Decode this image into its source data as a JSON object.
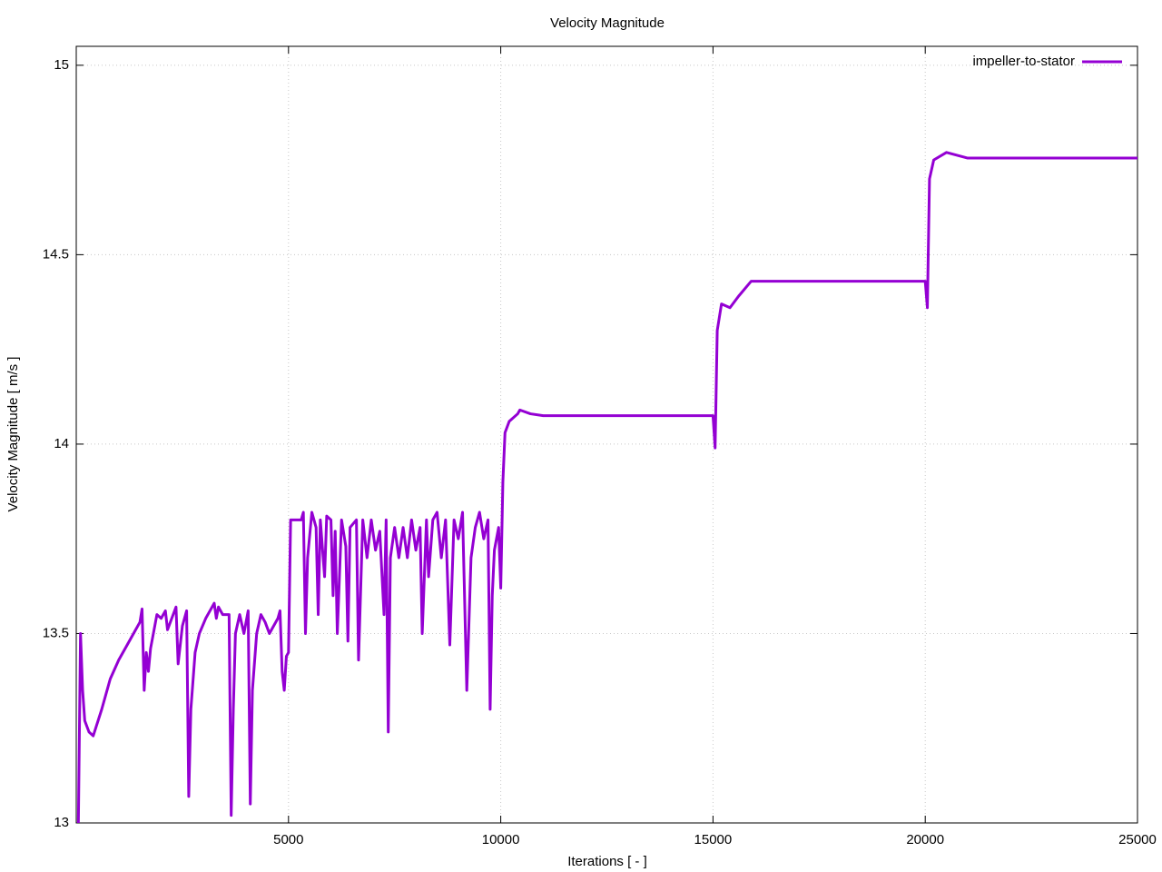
{
  "chart_data": {
    "type": "line",
    "title": "Velocity Magnitude",
    "xlabel": "Iterations [ - ]",
    "ylabel": "Velocity Magnitude [ m/s ]",
    "x": [
      50,
      100,
      150,
      200,
      300,
      400,
      600,
      800,
      1000,
      1200,
      1400,
      1500,
      1550,
      1600,
      1650,
      1700,
      1750,
      1850,
      1900,
      2000,
      2100,
      2150,
      2250,
      2350,
      2400,
      2500,
      2600,
      2650,
      2700,
      2800,
      2900,
      3050,
      3150,
      3250,
      3300,
      3350,
      3450,
      3600,
      3650,
      3700,
      3750,
      3850,
      3950,
      4050,
      4100,
      4150,
      4250,
      4350,
      4450,
      4550,
      4650,
      4750,
      4800,
      4850,
      4900,
      4950,
      5000,
      5050,
      5300,
      5350,
      5400,
      5450,
      5550,
      5650,
      5700,
      5750,
      5850,
      5900,
      6000,
      6050,
      6100,
      6150,
      6250,
      6350,
      6400,
      6450,
      6600,
      6650,
      6750,
      6850,
      6950,
      7050,
      7150,
      7250,
      7300,
      7350,
      7400,
      7500,
      7600,
      7700,
      7800,
      7900,
      8000,
      8100,
      8150,
      8250,
      8300,
      8400,
      8500,
      8600,
      8700,
      8800,
      8900,
      9000,
      9100,
      9200,
      9300,
      9400,
      9500,
      9600,
      9700,
      9750,
      9800,
      9850,
      9950,
      10000,
      10050,
      10100,
      10200,
      10400,
      10450,
      10700,
      11000,
      15000,
      15050,
      15100,
      15200,
      15400,
      15600,
      15900,
      20000,
      20050,
      20100,
      20200,
      20500,
      21000,
      25000
    ],
    "series": [
      {
        "name": "impeller-to-stator",
        "color": "#9400d3",
        "values": [
          13.0,
          13.5,
          13.35,
          13.27,
          13.24,
          13.23,
          13.3,
          13.38,
          13.43,
          13.47,
          13.51,
          13.53,
          13.565,
          13.35,
          13.45,
          13.4,
          13.46,
          13.52,
          13.55,
          13.54,
          13.56,
          13.51,
          13.54,
          13.57,
          13.42,
          13.52,
          13.56,
          13.07,
          13.3,
          13.45,
          13.5,
          13.54,
          13.56,
          13.58,
          13.54,
          13.57,
          13.55,
          13.55,
          13.02,
          13.3,
          13.5,
          13.55,
          13.5,
          13.56,
          13.05,
          13.35,
          13.5,
          13.55,
          13.53,
          13.5,
          13.52,
          13.54,
          13.56,
          13.4,
          13.35,
          13.44,
          13.45,
          13.8,
          13.8,
          13.82,
          13.5,
          13.7,
          13.82,
          13.78,
          13.55,
          13.8,
          13.65,
          13.81,
          13.8,
          13.6,
          13.77,
          13.5,
          13.8,
          13.73,
          13.48,
          13.78,
          13.8,
          13.43,
          13.8,
          13.7,
          13.8,
          13.72,
          13.77,
          13.55,
          13.8,
          13.24,
          13.7,
          13.78,
          13.7,
          13.78,
          13.7,
          13.8,
          13.72,
          13.78,
          13.5,
          13.8,
          13.65,
          13.8,
          13.82,
          13.7,
          13.8,
          13.47,
          13.8,
          13.75,
          13.82,
          13.35,
          13.7,
          13.78,
          13.82,
          13.75,
          13.8,
          13.3,
          13.6,
          13.72,
          13.78,
          13.62,
          13.9,
          14.03,
          14.06,
          14.08,
          14.09,
          14.08,
          14.075,
          14.075,
          13.99,
          14.3,
          14.37,
          14.36,
          14.39,
          14.43,
          14.43,
          14.36,
          14.7,
          14.75,
          14.77,
          14.755,
          14.755
        ]
      }
    ],
    "xlim": [
      0,
      25000
    ],
    "xticks": [
      5000,
      10000,
      15000,
      20000,
      25000
    ],
    "ylim": [
      13,
      15.05
    ],
    "yticks": [
      13,
      13.5,
      14,
      14.5,
      15
    ],
    "grid": true,
    "legend": "upper right"
  }
}
